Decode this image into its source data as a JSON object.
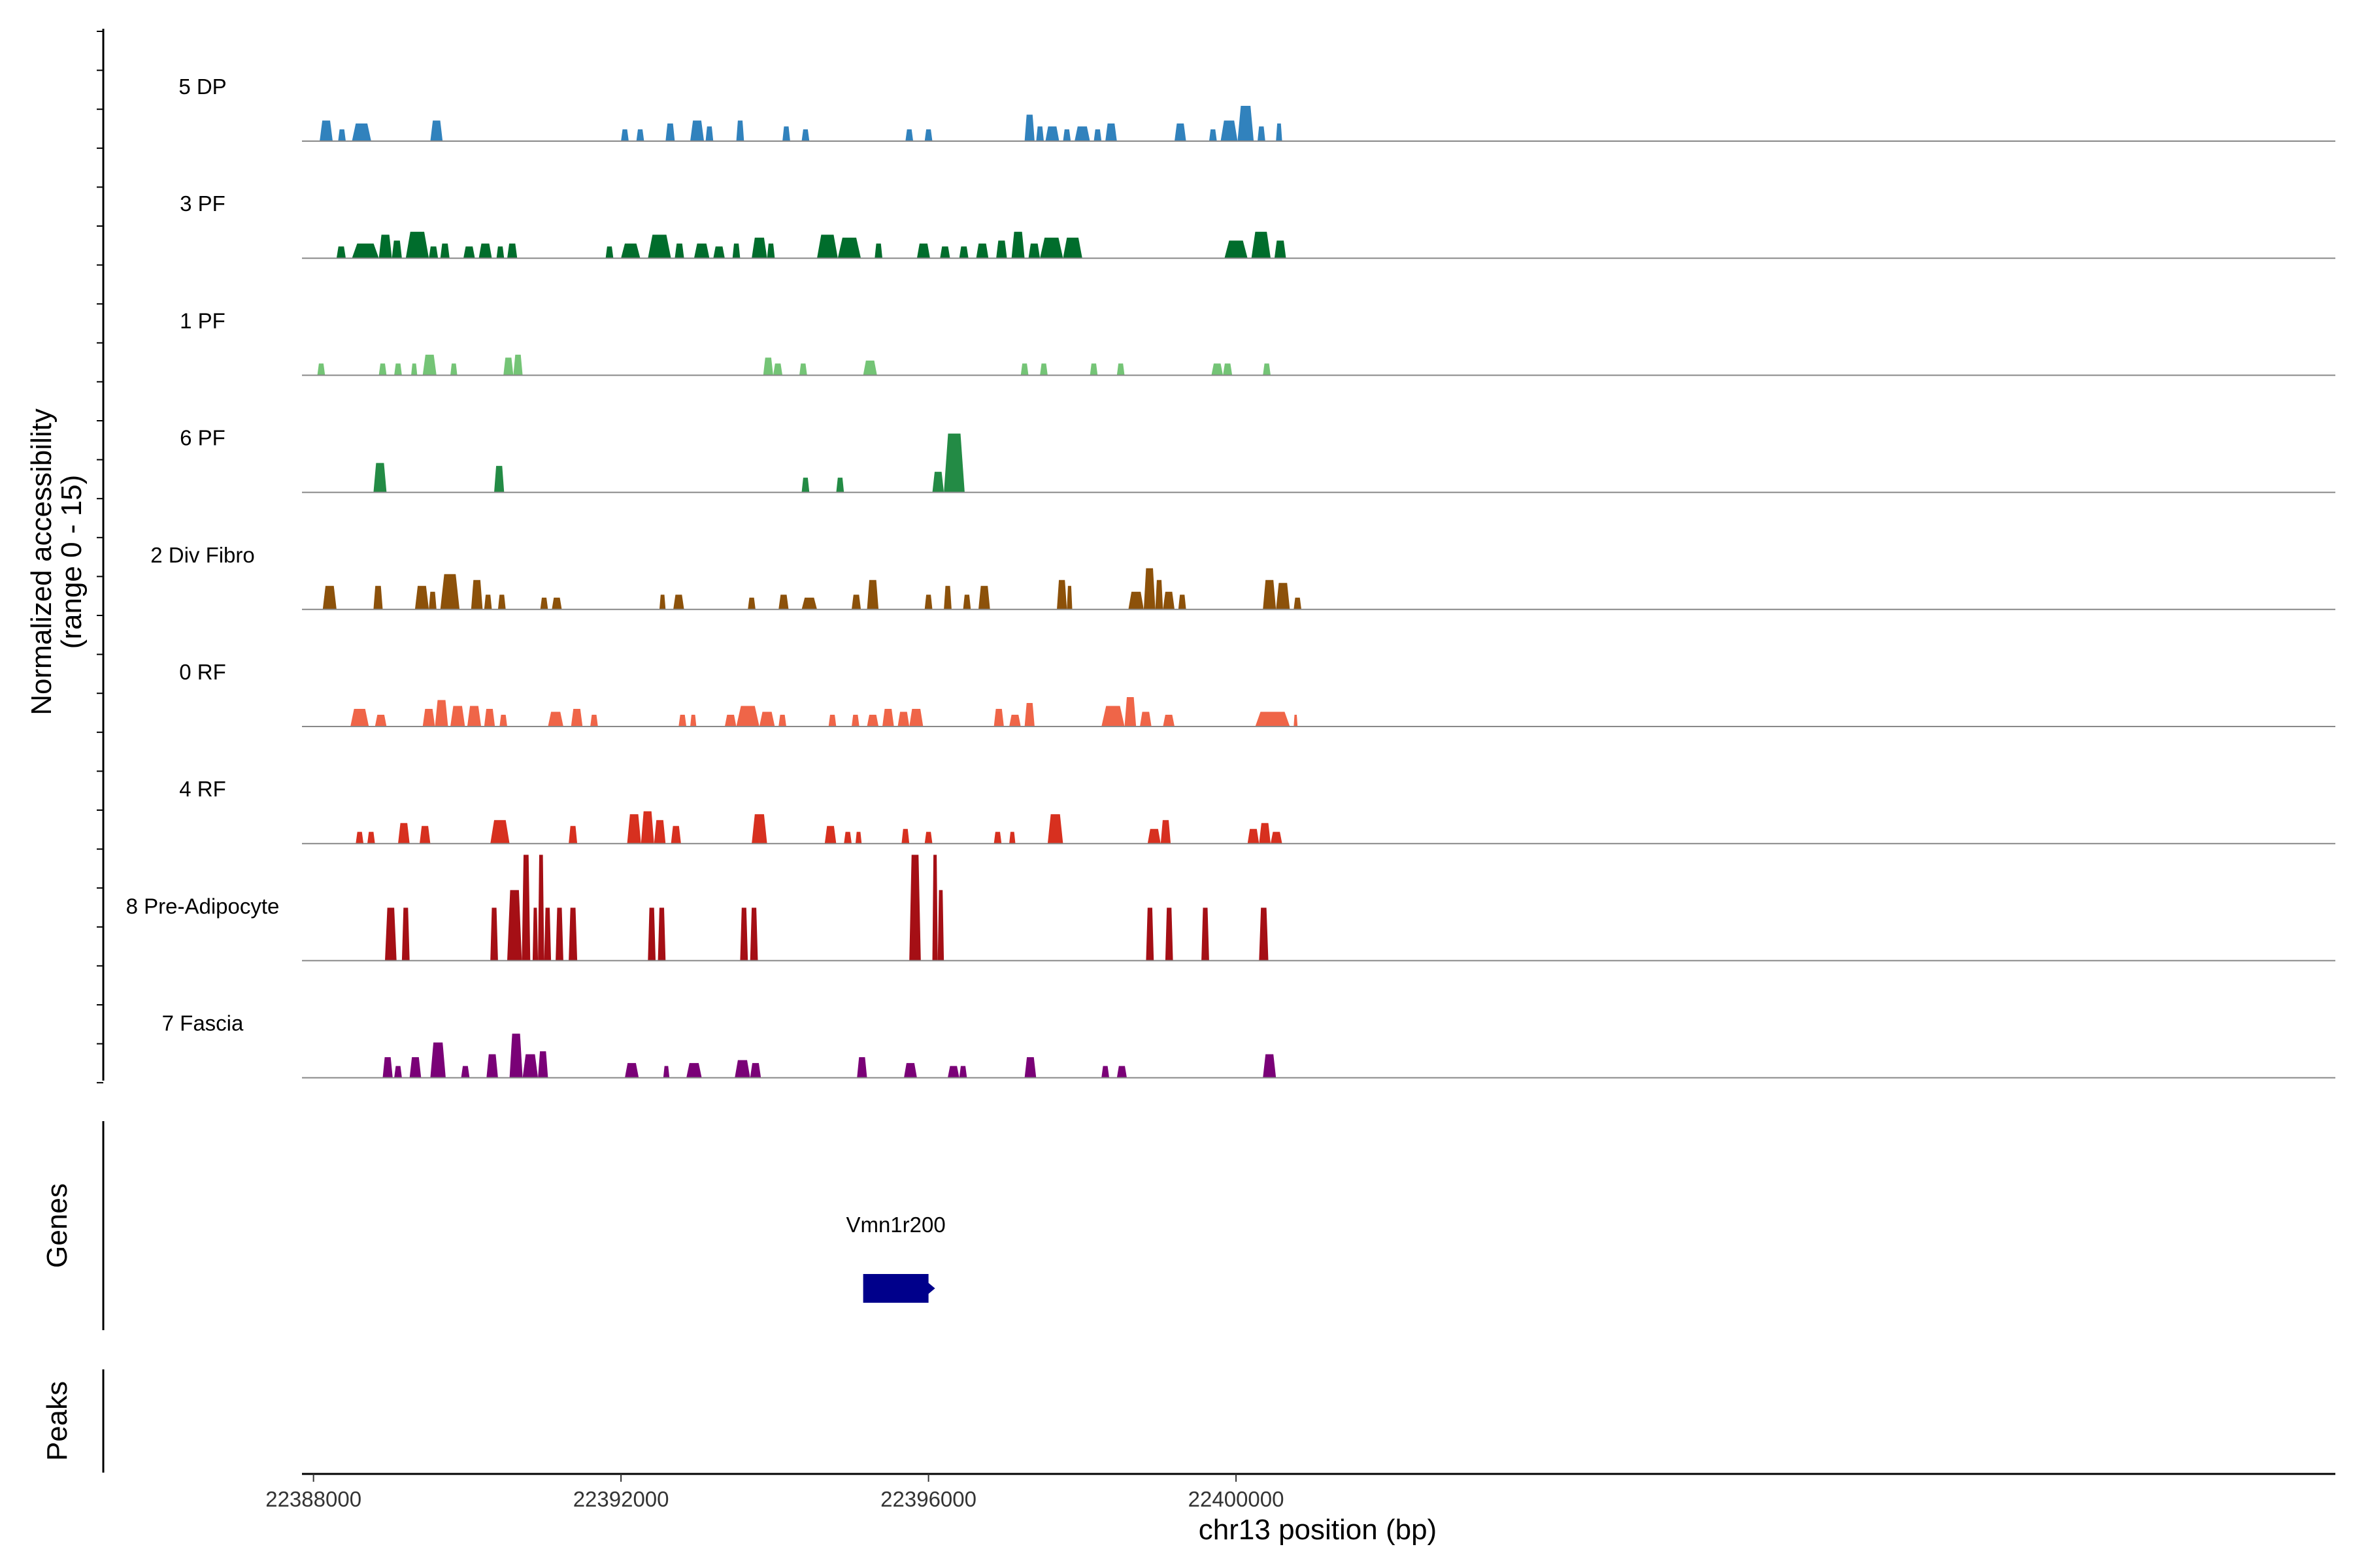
{
  "chart_data": {
    "type": "area",
    "title": "",
    "ylabel_line1": "Normalized accessibility",
    "ylabel_line2": "(range 0 - 15)",
    "xlabel": "chr13 position (bp)",
    "xlim": [
      22387850,
      22414300
    ],
    "ylim": [
      0,
      15
    ],
    "xticks": [
      22388000,
      22392000,
      22396000,
      22400000
    ],
    "xtick_labels": [
      "22388000",
      "22392000",
      "22396000",
      "22400000"
    ],
    "tracks": [
      {
        "name": "5 DP",
        "color": "#3182bd",
        "peaks": [
          [
            22388080,
            22388250,
            3.5
          ],
          [
            22388320,
            22388420,
            2
          ],
          [
            22388500,
            22388750,
            3
          ],
          [
            22389520,
            22389680,
            3.5
          ],
          [
            22392000,
            22392100,
            2
          ],
          [
            22392200,
            22392300,
            2
          ],
          [
            22392580,
            22392700,
            3
          ],
          [
            22392900,
            22393080,
            3.5
          ],
          [
            22393100,
            22393200,
            2.5
          ],
          [
            22393500,
            22393600,
            3.5
          ],
          [
            22394100,
            22394200,
            2.5
          ],
          [
            22394350,
            22394450,
            2
          ],
          [
            22395700,
            22395800,
            2
          ],
          [
            22395950,
            22396050,
            2
          ],
          [
            22397250,
            22397380,
            4.5
          ],
          [
            22397400,
            22397500,
            2.5
          ],
          [
            22397520,
            22397700,
            2.5
          ],
          [
            22397750,
            22397850,
            2
          ],
          [
            22397900,
            22398100,
            2.5
          ],
          [
            22398150,
            22398250,
            2
          ],
          [
            22398300,
            22398450,
            3
          ],
          [
            22399200,
            22399350,
            3
          ],
          [
            22399650,
            22399750,
            2
          ],
          [
            22399800,
            22400020,
            3.5
          ],
          [
            22400020,
            22400230,
            6
          ],
          [
            22400280,
            22400380,
            2.5
          ],
          [
            22400520,
            22400600,
            3
          ]
        ]
      },
      {
        "name": "3 PF",
        "color": "#006d2c",
        "peaks": [
          [
            22388300,
            22388420,
            2
          ],
          [
            22388500,
            22388850,
            2.5
          ],
          [
            22388850,
            22389020,
            4
          ],
          [
            22389020,
            22389150,
            3
          ],
          [
            22389200,
            22389500,
            4.5
          ],
          [
            22389500,
            22389620,
            2
          ],
          [
            22389650,
            22389770,
            2.5
          ],
          [
            22389950,
            22390100,
            2
          ],
          [
            22390150,
            22390320,
            2.5
          ],
          [
            22390380,
            22390480,
            2
          ],
          [
            22390520,
            22390650,
            2.5
          ],
          [
            22391800,
            22391900,
            2
          ],
          [
            22392000,
            22392250,
            2.5
          ],
          [
            22392350,
            22392650,
            4
          ],
          [
            22392700,
            22392820,
            2.5
          ],
          [
            22392950,
            22393150,
            2.5
          ],
          [
            22393200,
            22393350,
            2
          ],
          [
            22393450,
            22393550,
            2.5
          ],
          [
            22393700,
            22393900,
            3.5
          ],
          [
            22393900,
            22394000,
            2.5
          ],
          [
            22394550,
            22394820,
            4
          ],
          [
            22394820,
            22395120,
            3.5
          ],
          [
            22395300,
            22395400,
            2.5
          ],
          [
            22395850,
            22396020,
            2.5
          ],
          [
            22396150,
            22396280,
            2
          ],
          [
            22396400,
            22396520,
            2
          ],
          [
            22396620,
            22396780,
            2.5
          ],
          [
            22396880,
            22397020,
            3
          ],
          [
            22397080,
            22397250,
            4.5
          ],
          [
            22397300,
            22397450,
            2.5
          ],
          [
            22397450,
            22397750,
            3.5
          ],
          [
            22397750,
            22398000,
            3.5
          ],
          [
            22399850,
            22400150,
            3
          ],
          [
            22400200,
            22400450,
            4.5
          ],
          [
            22400500,
            22400650,
            3
          ]
        ]
      },
      {
        "name": "1 PF",
        "color": "#74c476",
        "peaks": [
          [
            22388050,
            22388150,
            2
          ],
          [
            22388850,
            22388950,
            2
          ],
          [
            22389050,
            22389150,
            2
          ],
          [
            22389270,
            22389350,
            2
          ],
          [
            22389420,
            22389600,
            3.5
          ],
          [
            22389780,
            22389870,
            2
          ],
          [
            22390470,
            22390600,
            3
          ],
          [
            22390600,
            22390720,
            3.5
          ],
          [
            22393850,
            22393980,
            3
          ],
          [
            22393980,
            22394100,
            2
          ],
          [
            22394320,
            22394420,
            2
          ],
          [
            22395150,
            22395330,
            2.5
          ],
          [
            22397200,
            22397300,
            2
          ],
          [
            22397450,
            22397550,
            2
          ],
          [
            22398100,
            22398200,
            2
          ],
          [
            22398450,
            22398550,
            2
          ],
          [
            22399680,
            22399830,
            2
          ],
          [
            22399830,
            22399950,
            2
          ],
          [
            22400350,
            22400450,
            2
          ]
        ]
      },
      {
        "name": "6 PF",
        "color": "#238b45",
        "peaks": [
          [
            22388780,
            22388950,
            5
          ],
          [
            22390350,
            22390480,
            4.5
          ],
          [
            22394350,
            22394450,
            2.5
          ],
          [
            22394800,
            22394900,
            2.5
          ],
          [
            22396050,
            22396200,
            3.5
          ],
          [
            22396200,
            22396470,
            10
          ]
        ]
      },
      {
        "name": "2 Div Fibro",
        "color": "#8c510a",
        "peaks": [
          [
            22388120,
            22388300,
            4
          ],
          [
            22388780,
            22388900,
            4
          ],
          [
            22389320,
            22389500,
            4
          ],
          [
            22389500,
            22389600,
            3
          ],
          [
            22389650,
            22389900,
            6
          ],
          [
            22390050,
            22390200,
            5
          ],
          [
            22390220,
            22390320,
            2.5
          ],
          [
            22390400,
            22390500,
            2.5
          ],
          [
            22390950,
            22391050,
            2
          ],
          [
            22391100,
            22391230,
            2
          ],
          [
            22392500,
            22392580,
            2.5
          ],
          [
            22392680,
            22392820,
            2.5
          ],
          [
            22393650,
            22393750,
            2
          ],
          [
            22394050,
            22394180,
            2.5
          ],
          [
            22394350,
            22394550,
            2
          ],
          [
            22395000,
            22395120,
            2.5
          ],
          [
            22395200,
            22395350,
            5
          ],
          [
            22395950,
            22396050,
            2.5
          ],
          [
            22396200,
            22396300,
            4
          ],
          [
            22396450,
            22396550,
            2.5
          ],
          [
            22396650,
            22396800,
            4
          ],
          [
            22397670,
            22397800,
            5
          ],
          [
            22397800,
            22397870,
            4
          ],
          [
            22398600,
            22398800,
            3
          ],
          [
            22398800,
            22398950,
            7
          ],
          [
            22398950,
            22399050,
            5
          ],
          [
            22399050,
            22399200,
            3
          ],
          [
            22399250,
            22399350,
            2.5
          ],
          [
            22400350,
            22400520,
            5
          ],
          [
            22400520,
            22400700,
            4.5
          ],
          [
            22400750,
            22400850,
            2
          ]
        ]
      },
      {
        "name": "0 RF",
        "color": "#ef6548",
        "peaks": [
          [
            22388480,
            22388720,
            3
          ],
          [
            22388800,
            22388950,
            2
          ],
          [
            22389420,
            22389580,
            3
          ],
          [
            22389580,
            22389750,
            4.5
          ],
          [
            22389780,
            22389970,
            3.5
          ],
          [
            22390000,
            22390180,
            3.5
          ],
          [
            22390220,
            22390360,
            3
          ],
          [
            22390420,
            22390520,
            2
          ],
          [
            22391050,
            22391250,
            2.5
          ],
          [
            22391350,
            22391500,
            3
          ],
          [
            22391600,
            22391700,
            2
          ],
          [
            22392750,
            22392850,
            2
          ],
          [
            22392900,
            22392980,
            2
          ],
          [
            22393350,
            22393500,
            2
          ],
          [
            22393500,
            22393800,
            3.5
          ],
          [
            22393800,
            22394000,
            2.5
          ],
          [
            22394050,
            22394150,
            2
          ],
          [
            22394700,
            22394800,
            2
          ],
          [
            22395000,
            22395100,
            2
          ],
          [
            22395200,
            22395350,
            2
          ],
          [
            22395400,
            22395550,
            3
          ],
          [
            22395600,
            22395750,
            2.5
          ],
          [
            22395750,
            22395930,
            3
          ],
          [
            22396850,
            22396980,
            3
          ],
          [
            22397050,
            22397200,
            2
          ],
          [
            22397250,
            22397380,
            4
          ],
          [
            22398250,
            22398550,
            3.5
          ],
          [
            22398550,
            22398700,
            5
          ],
          [
            22398750,
            22398900,
            2.5
          ],
          [
            22399050,
            22399200,
            2
          ],
          [
            22400250,
            22400700,
            2.5
          ],
          [
            22400750,
            22400800,
            2
          ]
        ]
      },
      {
        "name": "4 RF",
        "color": "#d7301f",
        "peaks": [
          [
            22388550,
            22388650,
            2
          ],
          [
            22388700,
            22388800,
            2
          ],
          [
            22389100,
            22389250,
            3.5
          ],
          [
            22389380,
            22389520,
            3
          ],
          [
            22390300,
            22390550,
            4
          ],
          [
            22391320,
            22391430,
            3
          ],
          [
            22392080,
            22392260,
            5
          ],
          [
            22392260,
            22392430,
            5.5
          ],
          [
            22392430,
            22392580,
            4
          ],
          [
            22392650,
            22392780,
            3
          ],
          [
            22393700,
            22393900,
            5
          ],
          [
            22394650,
            22394800,
            3
          ],
          [
            22394900,
            22395000,
            2
          ],
          [
            22395050,
            22395130,
            2
          ],
          [
            22395650,
            22395750,
            2.5
          ],
          [
            22395950,
            22396050,
            2
          ],
          [
            22396850,
            22396950,
            2
          ],
          [
            22397050,
            22397130,
            2
          ],
          [
            22397550,
            22397750,
            5
          ],
          [
            22398850,
            22399020,
            2.5
          ],
          [
            22399020,
            22399150,
            4
          ],
          [
            22400150,
            22400300,
            2.5
          ],
          [
            22400300,
            22400450,
            3.5
          ],
          [
            22400450,
            22400600,
            2
          ]
        ]
      },
      {
        "name": "8 Pre-Adipocyte",
        "color": "#a50f15",
        "peaks": [
          [
            22388930,
            22389080,
            9
          ],
          [
            22389150,
            22389250,
            9
          ],
          [
            22390300,
            22390400,
            9
          ],
          [
            22390520,
            22390710,
            12
          ],
          [
            22390710,
            22390820,
            18
          ],
          [
            22390850,
            22390920,
            9
          ],
          [
            22390920,
            22391000,
            18
          ],
          [
            22391000,
            22391090,
            9
          ],
          [
            22391150,
            22391250,
            9
          ],
          [
            22391320,
            22391430,
            9
          ],
          [
            22392350,
            22392450,
            9
          ],
          [
            22392480,
            22392580,
            9
          ],
          [
            22393550,
            22393650,
            9
          ],
          [
            22393680,
            22393780,
            9
          ],
          [
            22395750,
            22395900,
            18
          ],
          [
            22396050,
            22396120,
            18
          ],
          [
            22396120,
            22396200,
            12
          ],
          [
            22398830,
            22398930,
            9
          ],
          [
            22399080,
            22399180,
            9
          ],
          [
            22399550,
            22399650,
            9
          ],
          [
            22400300,
            22400420,
            9
          ]
        ]
      },
      {
        "name": "7 Fascia",
        "color": "#7a0177",
        "peaks": [
          [
            22388900,
            22389030,
            3.5
          ],
          [
            22389050,
            22389150,
            2
          ],
          [
            22389250,
            22389400,
            3.5
          ],
          [
            22389520,
            22389720,
            6
          ],
          [
            22389920,
            22390030,
            2
          ],
          [
            22390250,
            22390400,
            4
          ],
          [
            22390550,
            22390720,
            7.5
          ],
          [
            22390720,
            22390920,
            4
          ],
          [
            22390920,
            22391050,
            4.5
          ],
          [
            22392050,
            22392230,
            2.5
          ],
          [
            22392550,
            22392630,
            2
          ],
          [
            22392850,
            22393050,
            2.5
          ],
          [
            22393480,
            22393680,
            3
          ],
          [
            22393680,
            22393820,
            2.5
          ],
          [
            22395070,
            22395200,
            3.5
          ],
          [
            22395680,
            22395850,
            2.5
          ],
          [
            22396250,
            22396400,
            2
          ],
          [
            22396400,
            22396500,
            2
          ],
          [
            22397250,
            22397400,
            3.5
          ],
          [
            22398250,
            22398350,
            2
          ],
          [
            22398450,
            22398580,
            2
          ],
          [
            22400350,
            22400520,
            4
          ]
        ]
      }
    ],
    "genes_label": "Genes",
    "genes": [
      {
        "name": "Vmn1r200",
        "start": 22395150,
        "end": 22396000,
        "color": "#00008b",
        "strand": "+"
      }
    ],
    "peaks_label": "Peaks",
    "peaks": []
  }
}
